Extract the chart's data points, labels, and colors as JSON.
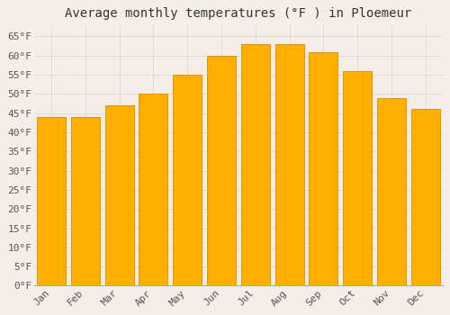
{
  "title": "Average monthly temperatures (°F ) in Ploemeur",
  "months": [
    "Jan",
    "Feb",
    "Mar",
    "Apr",
    "May",
    "Jun",
    "Jul",
    "Aug",
    "Sep",
    "Oct",
    "Nov",
    "Dec"
  ],
  "values": [
    44,
    44,
    47,
    50,
    55,
    60,
    63,
    63,
    61,
    56,
    49,
    46
  ],
  "bar_color": "#FFAF00",
  "bar_edge_color": "#E08800",
  "ylim": [
    0,
    68
  ],
  "yticks": [
    0,
    5,
    10,
    15,
    20,
    25,
    30,
    35,
    40,
    45,
    50,
    55,
    60,
    65
  ],
  "background_color": "#F5EEE8",
  "plot_bg_color": "#F5EEE8",
  "grid_color": "#DDDDCC",
  "title_fontsize": 10,
  "tick_fontsize": 8,
  "font_family": "monospace"
}
